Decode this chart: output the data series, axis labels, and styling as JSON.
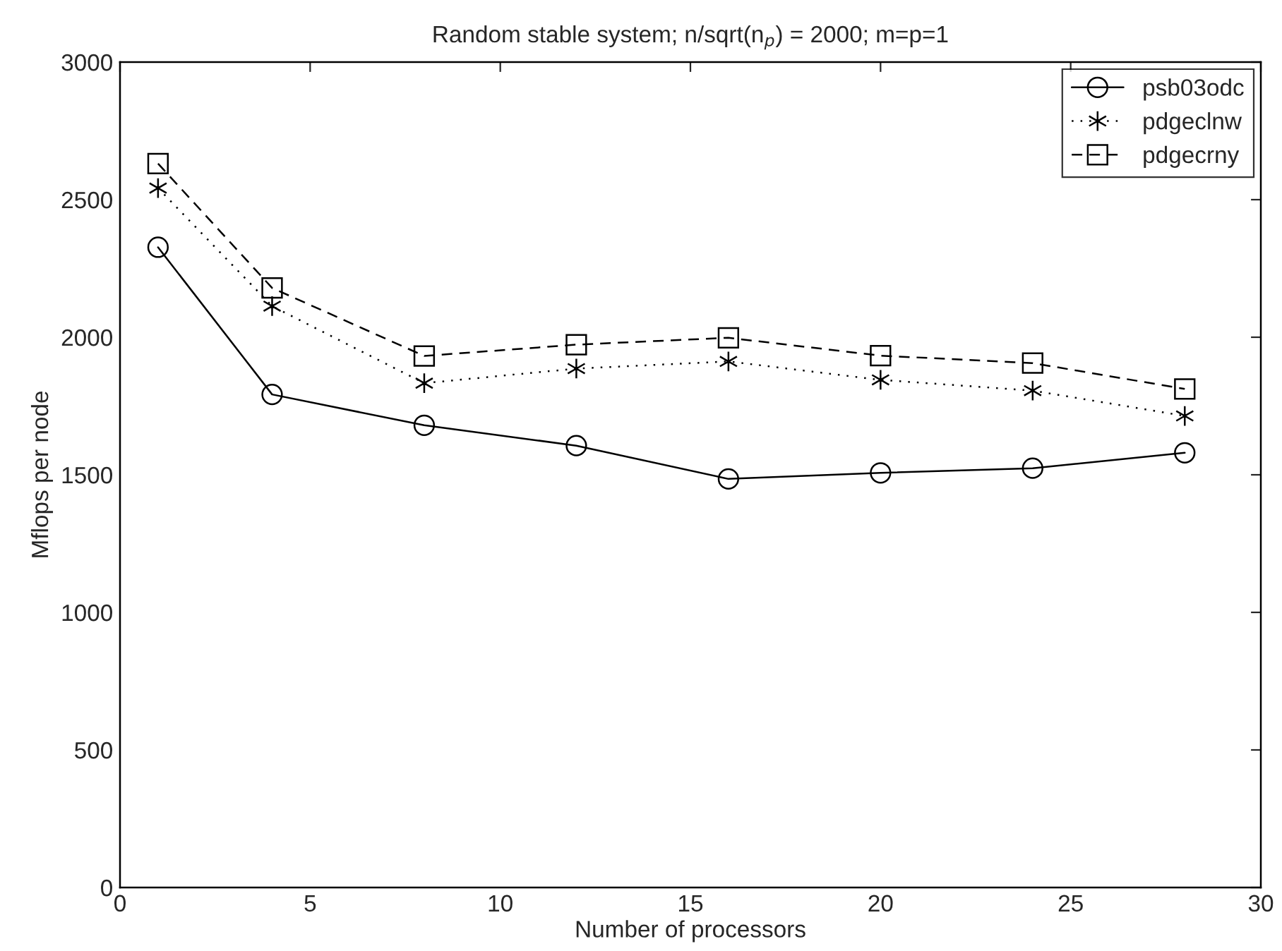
{
  "chart_data": {
    "type": "line",
    "title": "Random stable system; n/sqrt(n$_{p}$) = 2000; m=p=1",
    "xlabel": "Number of processors",
    "ylabel": "Mflops per node",
    "x": [
      1,
      4,
      8,
      12,
      16,
      20,
      24,
      28
    ],
    "series": [
      {
        "name": "psb03odc",
        "color": "#000000",
        "marker": "circle",
        "line_style": "solid",
        "values": [
          2327,
          1792,
          1680,
          1606,
          1485,
          1507,
          1524,
          1580
        ]
      },
      {
        "name": "pdgeclnw",
        "color": "#000000",
        "marker": "cross",
        "line_style": "dotted",
        "values": [
          2542,
          2113,
          1833,
          1886,
          1912,
          1845,
          1806,
          1714
        ]
      },
      {
        "name": "pdgecrny",
        "color": "#000000",
        "marker": "square",
        "line_style": "dashed",
        "values": [
          2631,
          2179,
          1932,
          1973,
          1998,
          1933,
          1906,
          1812
        ]
      }
    ],
    "xlim": [
      0,
      30
    ],
    "xticks": [
      0,
      5,
      10,
      15,
      20,
      25,
      30
    ],
    "ylim": [
      0,
      3000
    ],
    "yticks": [
      0,
      500,
      1000,
      1500,
      2000,
      2500,
      3000
    ],
    "grid": false,
    "legend": "top right"
  }
}
